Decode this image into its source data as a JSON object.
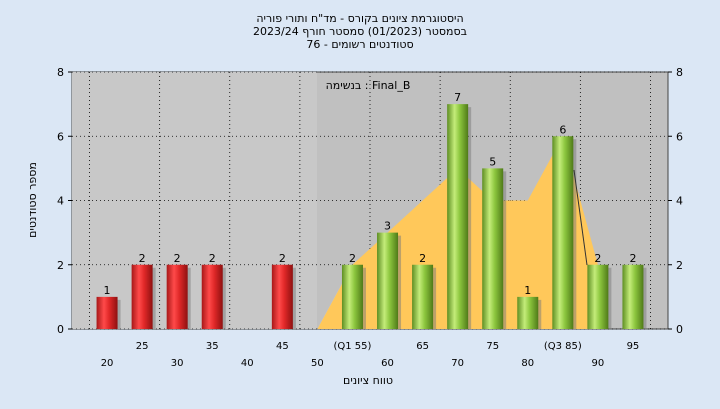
{
  "chart_data": {
    "type": "bar",
    "title_lines": [
      "היסטוגרמת ציונים בקורס - מד\"ח ותורי פוריה",
      "בסמסטר  (01/2023)  סמסטר חורף  2023/24",
      "סטודנטים רשומים - 76"
    ],
    "xlabel": "טווח ציונים",
    "ylabel": "מספר סטודנטים",
    "legend_text": "בנשימה : Final_B",
    "ylim": [
      0,
      8
    ],
    "yticks": [
      0,
      2,
      4,
      6,
      8
    ],
    "x_row1_labels": [
      "25",
      "35",
      "45",
      "(Q1 55)",
      "65",
      "75",
      "(Q3 85)",
      "95"
    ],
    "x_row2_labels": [
      "20",
      "30",
      "40",
      "50",
      "60",
      "70",
      "80",
      "90"
    ],
    "bars": [
      {
        "x": 20,
        "value": 1,
        "label": "1",
        "color": "red"
      },
      {
        "x": 25,
        "value": 2,
        "label": "2",
        "color": "red"
      },
      {
        "x": 30,
        "value": 2,
        "label": "2",
        "color": "red"
      },
      {
        "x": 35,
        "value": 2,
        "label": "2",
        "color": "red"
      },
      {
        "x": 45,
        "value": 2,
        "label": "2",
        "color": "red"
      },
      {
        "x": 55,
        "value": 2,
        "label": "2",
        "color": "green"
      },
      {
        "x": 60,
        "value": 3,
        "label": "3",
        "color": "green"
      },
      {
        "x": 65,
        "value": 2,
        "label": "2",
        "color": "green"
      },
      {
        "x": 70,
        "value": 7,
        "label": "7",
        "color": "green"
      },
      {
        "x": 75,
        "value": 5,
        "label": "5",
        "color": "green"
      },
      {
        "x": 80,
        "value": 1,
        "label": "1",
        "color": "green"
      },
      {
        "x": 85,
        "value": 6,
        "label": "6",
        "color": "green"
      },
      {
        "x": 90,
        "value": 2,
        "label": "2",
        "color": "green"
      },
      {
        "x": 95,
        "value": 2,
        "label": "2",
        "color": "green"
      }
    ],
    "area_series": {
      "x": [
        50,
        55,
        60,
        65,
        70,
        75,
        80,
        85,
        90
      ],
      "y": [
        0,
        2,
        3,
        4,
        5,
        4,
        4,
        6,
        2
      ]
    },
    "colors": {
      "red_bar": "#e02828",
      "green_bar": "#8cc63e",
      "area": "#ffc85a",
      "plot_bg": "#c0c0c0",
      "gray_area": "#d4d4d4",
      "page_bg": "#dbe7f5"
    },
    "grid": true
  }
}
